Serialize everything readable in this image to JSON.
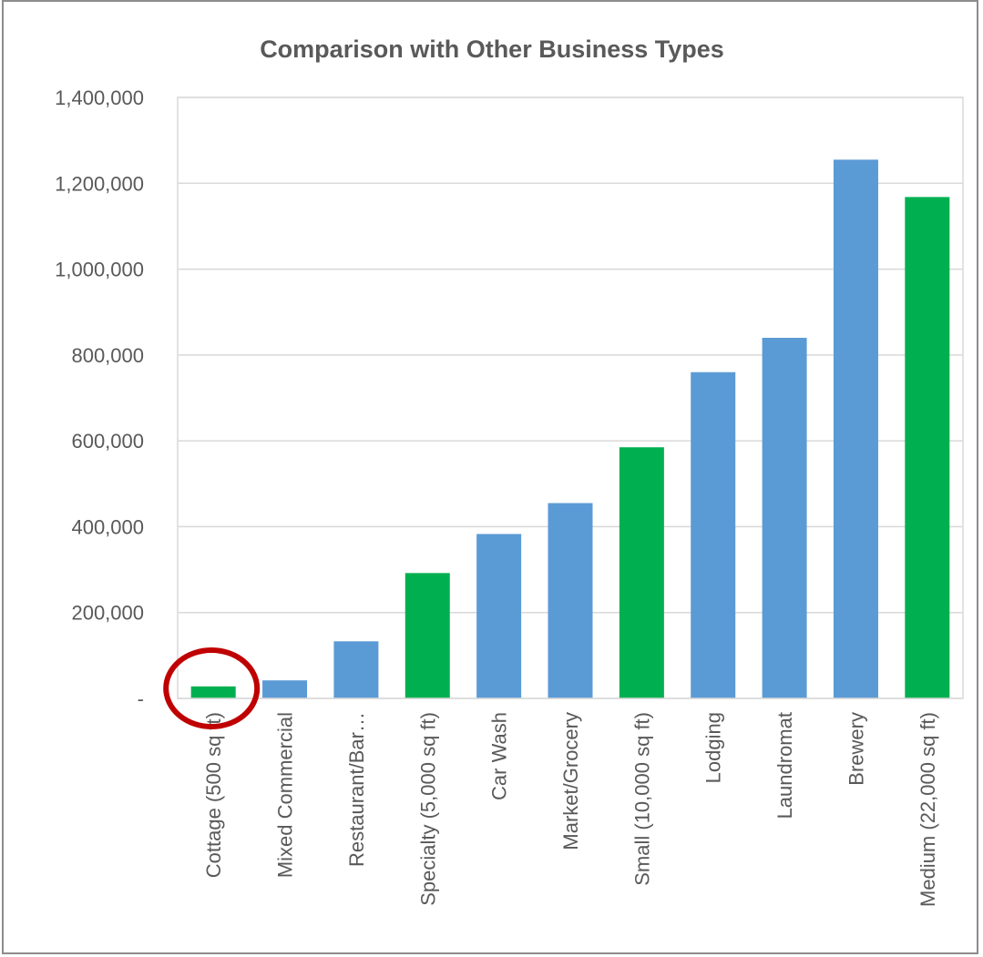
{
  "chart_data": {
    "type": "bar",
    "title": "Comparison with Other Business Types",
    "xlabel": "",
    "ylabel": "",
    "categories": [
      "Cottage (500 sq ft)",
      "Mixed Commercial",
      "Restaurant/Bar…",
      "Specialty (5,000 sq ft)",
      "Car Wash",
      "Market/Grocery",
      "Small (10,000 sq ft)",
      "Lodging",
      "Laundromat",
      "Brewery",
      "Medium (22,000 sq ft)"
    ],
    "values": [
      28000,
      42000,
      133000,
      292000,
      383000,
      455000,
      585000,
      760000,
      840000,
      1255000,
      1168000
    ],
    "bar_colors": [
      "#00b050",
      "#5b9bd5",
      "#5b9bd5",
      "#00b050",
      "#5b9bd5",
      "#5b9bd5",
      "#00b050",
      "#5b9bd5",
      "#5b9bd5",
      "#5b9bd5",
      "#00b050"
    ],
    "ylim": [
      0,
      1400000
    ],
    "yticks": [
      0,
      200000,
      400000,
      600000,
      800000,
      1000000,
      1200000,
      1400000
    ],
    "ytick_labels": [
      "-",
      "200,000",
      "400,000",
      "600,000",
      "800,000",
      "1,000,000",
      "1,200,000",
      "1,400,000"
    ],
    "grid": true,
    "legend": "none",
    "annotation": {
      "type": "circle",
      "target_category": "Cottage (500 sq ft)",
      "color": "#c00000"
    }
  }
}
